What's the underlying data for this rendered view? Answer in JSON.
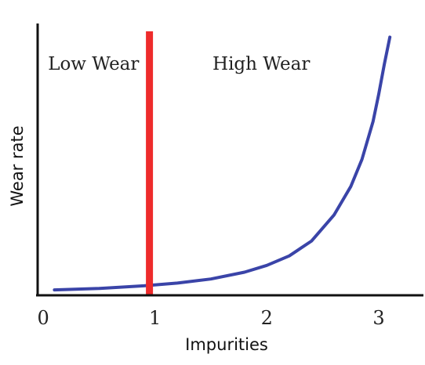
{
  "chart_data": {
    "type": "line",
    "title": "",
    "xlabel": "Impurities",
    "ylabel": "Wear rate",
    "x_ticks": [
      {
        "value": 0,
        "label": "0"
      },
      {
        "value": 1,
        "label": "1"
      },
      {
        "value": 2,
        "label": "2"
      },
      {
        "value": 3,
        "label": "3"
      }
    ],
    "xlim": [
      -0.05,
      3.4
    ],
    "ylim": [
      0,
      10
    ],
    "grid": false,
    "series": [
      {
        "color": "#3a44a8",
        "x": [
          0.1,
          0.5,
          0.9,
          1.2,
          1.5,
          1.8,
          2.0,
          2.2,
          2.4,
          2.6,
          2.75,
          2.85,
          2.95,
          3.0,
          3.05,
          3.1
        ],
        "y": [
          0.2,
          0.25,
          0.35,
          0.45,
          0.6,
          0.85,
          1.1,
          1.45,
          2.0,
          2.95,
          4.0,
          5.0,
          6.4,
          7.4,
          8.5,
          9.5
        ]
      }
    ],
    "annotations": [
      {
        "type": "vline",
        "x": 0.95,
        "color": "#ee2b2b"
      },
      {
        "type": "region_label",
        "text": "Low Wear",
        "x": 0.45,
        "y": 8.3
      },
      {
        "type": "region_label",
        "text": "High Wear",
        "x": 1.95,
        "y": 8.3
      }
    ]
  }
}
